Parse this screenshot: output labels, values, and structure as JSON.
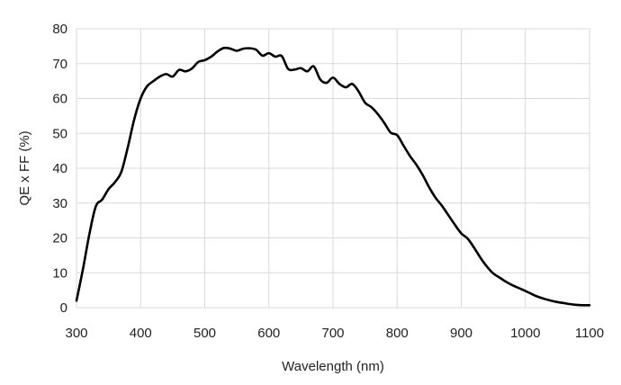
{
  "chart_data": {
    "type": "line",
    "title": "",
    "xlabel": "Wavelength (nm)",
    "ylabel": "QE x FF (%)",
    "xlim": [
      300,
      1100
    ],
    "ylim": [
      0,
      80
    ],
    "x_ticks": [
      300,
      400,
      500,
      600,
      700,
      800,
      900,
      1000,
      1100
    ],
    "y_ticks": [
      0,
      10,
      20,
      30,
      40,
      50,
      60,
      70,
      80
    ],
    "grid": true,
    "legend": "none",
    "line_color": "#000000",
    "grid_color": "#d9d9d9",
    "series": [
      {
        "x": [
          300,
          310,
          320,
          330,
          340,
          350,
          360,
          370,
          380,
          390,
          400,
          410,
          420,
          430,
          440,
          450,
          460,
          470,
          480,
          490,
          500,
          510,
          520,
          530,
          540,
          550,
          560,
          570,
          580,
          590,
          600,
          610,
          620,
          630,
          640,
          650,
          660,
          670,
          680,
          690,
          700,
          710,
          720,
          730,
          740,
          750,
          760,
          770,
          780,
          790,
          800,
          810,
          820,
          830,
          840,
          850,
          860,
          870,
          880,
          890,
          900,
          910,
          920,
          930,
          940,
          950,
          960,
          970,
          980,
          990,
          1000,
          1010,
          1020,
          1030,
          1040,
          1050,
          1060,
          1070,
          1080,
          1090,
          1100
        ],
        "y": [
          2,
          11,
          21,
          29,
          31,
          34,
          36,
          39,
          46,
          54,
          60,
          63.5,
          65,
          66.3,
          67,
          66.3,
          68.2,
          67.8,
          68.6,
          70.5,
          71,
          72,
          73.5,
          74.5,
          74.3,
          73.7,
          74.3,
          74.4,
          74,
          72.3,
          73,
          72,
          72.2,
          68.5,
          68.3,
          68.7,
          67.8,
          69.2,
          65.5,
          64.5,
          66,
          64.2,
          63.2,
          64.2,
          62,
          58.8,
          57.5,
          55.5,
          53,
          50.2,
          49.5,
          46.5,
          43.5,
          41,
          38,
          34.5,
          31.5,
          29.2,
          26.5,
          23.8,
          21.3,
          19.8,
          17.2,
          14.3,
          11.8,
          9.8,
          8.6,
          7.4,
          6.4,
          5.6,
          4.8,
          3.9,
          3.1,
          2.5,
          2.0,
          1.6,
          1.3,
          1.0,
          0.8,
          0.7,
          0.7
        ]
      }
    ]
  }
}
